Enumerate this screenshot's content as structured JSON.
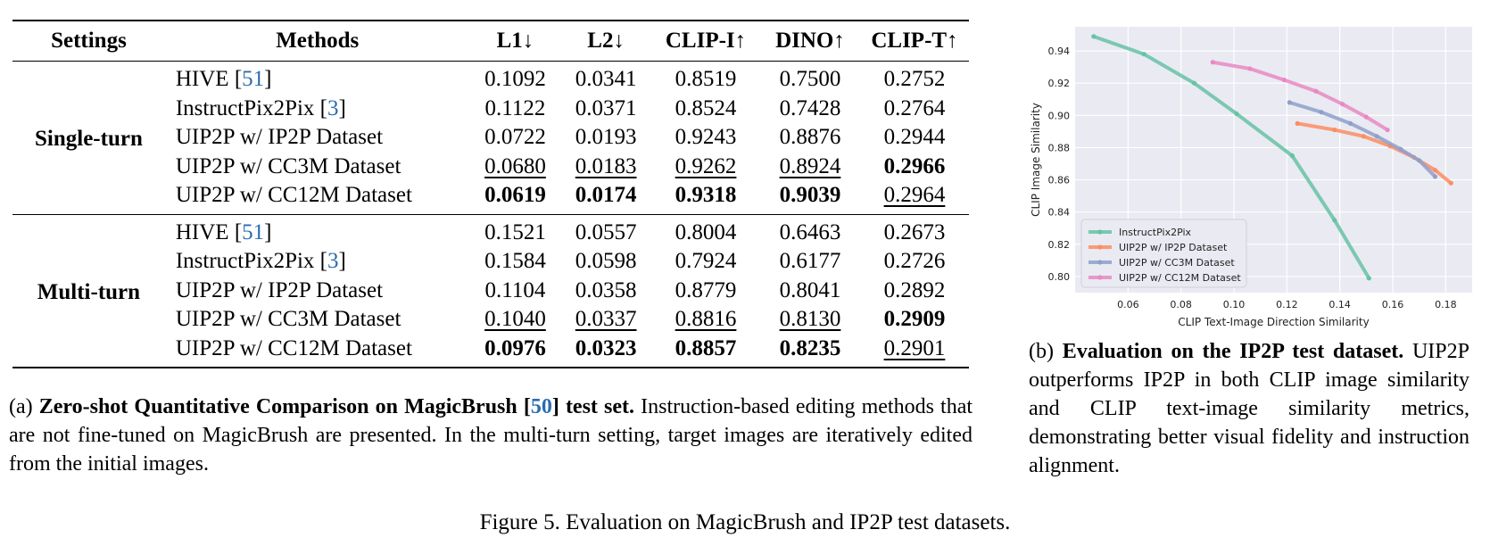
{
  "table": {
    "headers": [
      "Settings",
      "Methods",
      "L1↓",
      "L2↓",
      "CLIP-I↑",
      "DINO↑",
      "CLIP-T↑"
    ],
    "blocks": [
      {
        "setting": "Single-turn",
        "rows": [
          {
            "method": "HIVE [",
            "ref": "51",
            "ref_close": "]",
            "values": [
              "0.1092",
              "0.0341",
              "0.8519",
              "0.7500",
              "0.2752"
            ]
          },
          {
            "method": "InstructPix2Pix [",
            "ref": "3",
            "ref_close": "]",
            "values": [
              "0.1122",
              "0.0371",
              "0.8524",
              "0.7428",
              "0.2764"
            ]
          },
          {
            "method": "UIP2P w/ IP2P Dataset",
            "ref": "",
            "ref_close": "",
            "values": [
              "0.0722",
              "0.0193",
              "0.9243",
              "0.8876",
              "0.2944"
            ]
          },
          {
            "method": "UIP2P w/ CC3M Dataset",
            "ref": "",
            "ref_close": "",
            "values": [
              "0.0680",
              "0.0183",
              "0.9262",
              "0.8924",
              "0.2966"
            ]
          },
          {
            "method": "UIP2P w/ CC12M Dataset",
            "ref": "",
            "ref_close": "",
            "values": [
              "0.0619",
              "0.0174",
              "0.9318",
              "0.9039",
              "0.2964"
            ]
          }
        ]
      },
      {
        "setting": "Multi-turn",
        "rows": [
          {
            "method": "HIVE [",
            "ref": "51",
            "ref_close": "]",
            "values": [
              "0.1521",
              "0.0557",
              "0.8004",
              "0.6463",
              "0.2673"
            ]
          },
          {
            "method": "InstructPix2Pix [",
            "ref": "3",
            "ref_close": "]",
            "values": [
              "0.1584",
              "0.0598",
              "0.7924",
              "0.6177",
              "0.2726"
            ]
          },
          {
            "method": "UIP2P w/ IP2P Dataset",
            "ref": "",
            "ref_close": "",
            "values": [
              "0.1104",
              "0.0358",
              "0.8779",
              "0.8041",
              "0.2892"
            ]
          },
          {
            "method": "UIP2P w/ CC3M Dataset",
            "ref": "",
            "ref_close": "",
            "values": [
              "0.1040",
              "0.0337",
              "0.8816",
              "0.8130",
              "0.2909"
            ]
          },
          {
            "method": "UIP2P w/ CC12M Dataset",
            "ref": "",
            "ref_close": "",
            "values": [
              "0.0976",
              "0.0323",
              "0.8857",
              "0.8235",
              "0.2901"
            ]
          }
        ]
      }
    ]
  },
  "caption_a": {
    "label": "(a)",
    "bold": "Zero-shot Quantitative Comparison on MagicBrush [",
    "ref": "50",
    "bold_close": "] test set.",
    "text": " Instruction-based editing methods that are not fine-tuned on MagicBrush are presented. In the multi-turn setting, target images are iteratively edited from the initial images."
  },
  "caption_b": {
    "label": "(b)",
    "bold": "Evaluation on the IP2P test dataset.",
    "text": " UIP2P outperforms IP2P in both CLIP image similarity and CLIP text-image similarity metrics, demonstrating better visual fidelity and instruction alignment."
  },
  "figure_caption": "Figure 5. Evaluation on MagicBrush and IP2P test datasets.",
  "chart_data": {
    "type": "line",
    "xlabel": "CLIP Text-Image Direction Similarity",
    "ylabel": "CLIP Image Similarity",
    "xlim": [
      0.04,
      0.19
    ],
    "ylim": [
      0.79,
      0.955
    ],
    "xticks": [
      "0.06",
      "0.08",
      "0.10",
      "0.12",
      "0.14",
      "0.16",
      "0.18"
    ],
    "yticks": [
      "0.80",
      "0.82",
      "0.84",
      "0.86",
      "0.88",
      "0.90",
      "0.92",
      "0.94"
    ],
    "grid": true,
    "legend_position": "lower-left",
    "background": "#eaeaf2",
    "series": [
      {
        "name": "InstructPix2Pix",
        "color": "#66c2a5",
        "x": [
          0.047,
          0.066,
          0.085,
          0.101,
          0.122,
          0.138,
          0.151
        ],
        "y": [
          0.949,
          0.938,
          0.92,
          0.901,
          0.875,
          0.835,
          0.799
        ]
      },
      {
        "name": "UIP2P w/ IP2P Dataset",
        "color": "#fc8d62",
        "x": [
          0.124,
          0.138,
          0.149,
          0.159,
          0.168,
          0.176,
          0.182
        ],
        "y": [
          0.895,
          0.891,
          0.887,
          0.881,
          0.874,
          0.866,
          0.858
        ]
      },
      {
        "name": "UIP2P w/ CC3M Dataset",
        "color": "#8da0cb",
        "x": [
          0.121,
          0.133,
          0.144,
          0.154,
          0.163,
          0.17,
          0.176
        ],
        "y": [
          0.908,
          0.902,
          0.895,
          0.887,
          0.879,
          0.872,
          0.862
        ]
      },
      {
        "name": "UIP2P w/ CC12M Dataset",
        "color": "#e78ac3",
        "x": [
          0.092,
          0.106,
          0.119,
          0.131,
          0.141,
          0.15,
          0.158
        ],
        "y": [
          0.933,
          0.929,
          0.922,
          0.915,
          0.907,
          0.899,
          0.891
        ]
      }
    ]
  }
}
